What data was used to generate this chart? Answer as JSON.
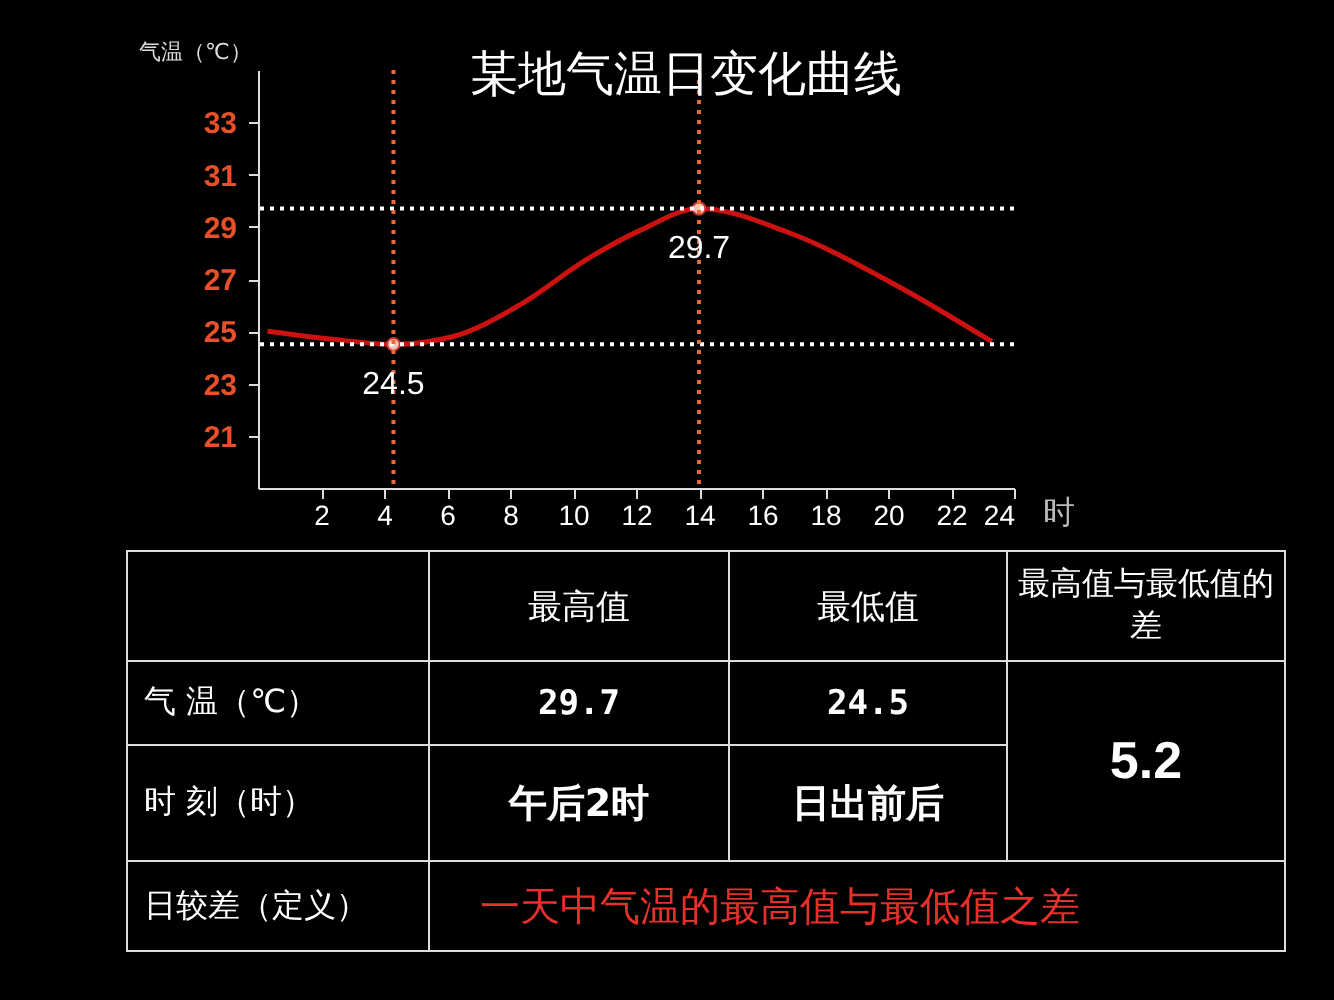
{
  "chart_data": {
    "type": "line",
    "title": "某地气温日变化曲线",
    "ylabel": "气温（℃）",
    "xlabel": "时",
    "xlim": [
      0,
      24
    ],
    "xticks": [
      2,
      4,
      6,
      8,
      10,
      12,
      14,
      16,
      18,
      20,
      22,
      24
    ],
    "ylim": [
      19,
      35
    ],
    "yticks": [
      21,
      23,
      25,
      27,
      29,
      31,
      33
    ],
    "grid": false,
    "series": [
      {
        "color": "#cc1111",
        "x": [
          0.3,
          2.3,
          4.3,
          6.2,
          8.3,
          10.5,
          12.2,
          14,
          16.8,
          20.2,
          23.3
        ],
        "values": [
          25.0,
          24.7,
          24.5,
          24.8,
          26.0,
          27.8,
          28.9,
          29.7,
          28.8,
          26.8,
          24.6
        ]
      },
      {
        "type": "scatter",
        "color": "#f4c8b0",
        "marker": "circle",
        "x": [
          4.3,
          14
        ],
        "values": [
          24.5,
          29.7
        ]
      }
    ],
    "ref_lines": [
      {
        "axis": "y",
        "value": 29.7,
        "color": "#ffffff",
        "line_style": "dotted"
      },
      {
        "axis": "y",
        "value": 24.5,
        "color": "#ffffff",
        "line_style": "dotted"
      },
      {
        "axis": "x",
        "value": 4.3,
        "color": "#e86a3a",
        "line_style": "dotted"
      },
      {
        "axis": "x",
        "value": 14,
        "color": "#e86a3a",
        "line_style": "dotted"
      }
    ],
    "annotations": [
      {
        "text": "29.7",
        "x": 14,
        "y": 29.7
      },
      {
        "text": "24.5",
        "x": 4.3,
        "y": 24.5
      },
      "最高值",
      "最低值",
      "最高值与最低值的差",
      "气 温（℃）",
      "29.7",
      "24.5",
      "5.2",
      "时 刻（时）",
      "午后2时",
      "日出前后",
      "日较差（定义）",
      "一天中气温的最高值与最低值之差"
    ]
  }
}
